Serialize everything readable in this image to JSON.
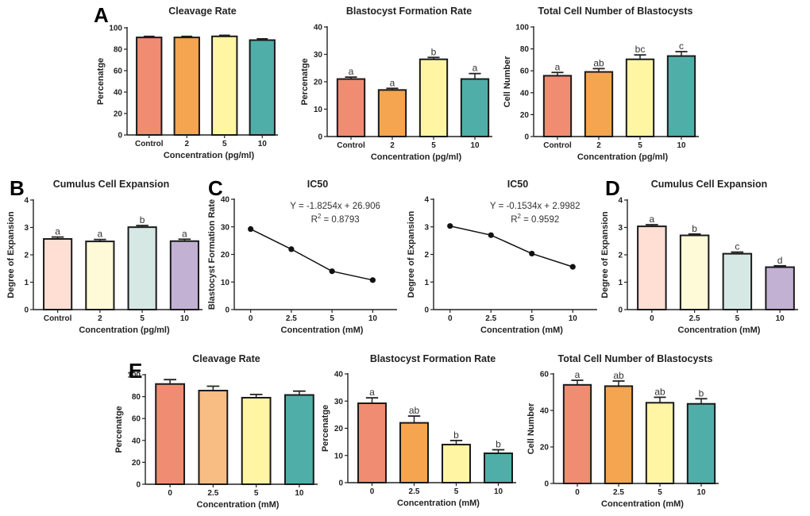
{
  "figure": {
    "panel_letters": [
      "A",
      "B",
      "C",
      "D",
      "E"
    ]
  },
  "colors": {
    "warm": [
      "#f08c72",
      "#f5a550",
      "#fff5a3",
      "#50aea8"
    ],
    "pastel": [
      "#ffdfd4",
      "#fefad8",
      "#d5e8e4",
      "#c3b1d4"
    ],
    "E_cleavage": [
      "#f08c72",
      "#f8bd82",
      "#fff5a3",
      "#50aea8"
    ]
  },
  "chart_data": [
    {
      "id": "A1",
      "panel": "A",
      "type": "bar",
      "title": "Cleavage Rate",
      "xlabel": "Concentration (pg/ml)",
      "ylabel": "Percenatge",
      "categories": [
        "Control",
        "2",
        "5",
        "10"
      ],
      "values": [
        91,
        91,
        92,
        88.5
      ],
      "errors": [
        1,
        1,
        1,
        1.2
      ],
      "sig_letters": [
        "",
        "",
        "",
        ""
      ],
      "ylim": [
        0,
        100
      ],
      "yticks": [
        0,
        20,
        40,
        60,
        80,
        100
      ],
      "palette": "warm"
    },
    {
      "id": "A2",
      "panel": "A",
      "type": "bar",
      "title": "Blastocyst Formation Rate",
      "xlabel": "Concentration (pg/ml)",
      "ylabel": "Percenatge",
      "categories": [
        "Control",
        "2",
        "5",
        "10"
      ],
      "values": [
        21,
        17,
        28.2,
        21
      ],
      "errors": [
        0.7,
        0.6,
        0.7,
        2
      ],
      "sig_letters": [
        "a",
        "a",
        "b",
        "a"
      ],
      "ylim": [
        0,
        40
      ],
      "yticks": [
        0,
        10,
        20,
        30,
        40
      ],
      "palette": "warm"
    },
    {
      "id": "A3",
      "panel": "A",
      "type": "bar",
      "title": "Total Cell Number of Blastocysts",
      "xlabel": "Concentration (pg/ml)",
      "ylabel": "Cell Number",
      "categories": [
        "Control",
        "2",
        "5",
        "10"
      ],
      "values": [
        55.5,
        59,
        70.5,
        73.5
      ],
      "errors": [
        3,
        3,
        4,
        4
      ],
      "sig_letters": [
        "a",
        "ab",
        "bc",
        "c"
      ],
      "ylim": [
        0,
        100
      ],
      "yticks": [
        0,
        20,
        40,
        60,
        80,
        100
      ],
      "palette": "warm"
    },
    {
      "id": "B",
      "panel": "B",
      "type": "bar",
      "title": "Cumulus Cell Expansion",
      "xlabel": "Concentration (pg/ml)",
      "ylabel": "Degree of Expansion",
      "categories": [
        "Control",
        "2",
        "5",
        "10"
      ],
      "values": [
        2.58,
        2.49,
        3.01,
        2.5
      ],
      "errors": [
        0.07,
        0.07,
        0.06,
        0.07
      ],
      "sig_letters": [
        "a",
        "a",
        "b",
        "a"
      ],
      "ylim": [
        0,
        4
      ],
      "yticks": [
        0,
        1,
        2,
        3,
        4
      ],
      "palette": "pastel"
    },
    {
      "id": "C1",
      "panel": "C",
      "type": "line",
      "title": "IC50",
      "xlabel": "Concentration (mM)",
      "ylabel": "Blastocyst Formation Rate",
      "categories": [
        "0",
        "2.5",
        "5",
        "10"
      ],
      "values": [
        29.2,
        21.9,
        13.9,
        10.7
      ],
      "ylim": [
        0,
        40
      ],
      "yticks": [
        0,
        10,
        20,
        30,
        40
      ],
      "equation": "Y = -1.8254x + 26.906",
      "r2_label": "R",
      "r2_sup": "2",
      "r2_value": " = 0.8793"
    },
    {
      "id": "C2",
      "panel": "",
      "type": "line",
      "title": "IC50",
      "xlabel": "Concentration (mM)",
      "ylabel": "Degree of Expansion",
      "categories": [
        "0",
        "2.5",
        "5",
        "10"
      ],
      "values": [
        3.03,
        2.7,
        2.03,
        1.55
      ],
      "ylim": [
        0,
        4
      ],
      "yticks": [
        0,
        1,
        2,
        3,
        4
      ],
      "equation": "Y = -0.1534x + 2.9982",
      "r2_label": "R",
      "r2_sup": "2",
      "r2_value": " = 0.9592"
    },
    {
      "id": "D",
      "panel": "D",
      "type": "bar",
      "title": "Cumulus Cell Expansion",
      "xlabel": "Concentration (mM)",
      "ylabel": "Degree of Expansion",
      "categories": [
        "0",
        "2.5",
        "5",
        "10"
      ],
      "values": [
        3.04,
        2.71,
        2.04,
        1.55
      ],
      "errors": [
        0.06,
        0.05,
        0.06,
        0.05
      ],
      "sig_letters": [
        "a",
        "b",
        "c",
        "d"
      ],
      "ylim": [
        0,
        4
      ],
      "yticks": [
        0,
        1,
        2,
        3,
        4
      ],
      "palette": "pastel"
    },
    {
      "id": "E1",
      "panel": "E",
      "type": "bar",
      "title": "Cleavage Rate",
      "xlabel": "Concentration (mM)",
      "ylabel": "Percenatge",
      "categories": [
        "0",
        "2.5",
        "5",
        "10"
      ],
      "values": [
        91.5,
        85.5,
        79,
        81.5
      ],
      "errors": [
        4,
        4,
        3,
        3.5
      ],
      "sig_letters": [
        "",
        "",
        "",
        ""
      ],
      "ylim": [
        0,
        100
      ],
      "yticks": [
        0,
        20,
        40,
        60,
        80,
        100
      ],
      "palette": "E_cleavage"
    },
    {
      "id": "E2",
      "panel": "",
      "type": "bar",
      "title": "Blastocyst Formation Rate",
      "xlabel": "Concentration (mM)",
      "ylabel": "Percenatge",
      "categories": [
        "0",
        "2.5",
        "5",
        "10"
      ],
      "values": [
        29.2,
        22,
        14,
        10.8
      ],
      "errors": [
        2,
        2.5,
        1.5,
        1.3
      ],
      "sig_letters": [
        "a",
        "ab",
        "b",
        "b"
      ],
      "ylim": [
        0,
        40
      ],
      "yticks": [
        0,
        10,
        20,
        30,
        40
      ],
      "palette": "warm"
    },
    {
      "id": "E3",
      "panel": "",
      "type": "bar",
      "title": "Total Cell Number of Blastocysts",
      "xlabel": "Concentration (mM)",
      "ylabel": "Cell Number",
      "categories": [
        "0",
        "2.5",
        "5",
        "10"
      ],
      "values": [
        54,
        53.3,
        44.2,
        43.6
      ],
      "errors": [
        2.5,
        2.8,
        3,
        2.8
      ],
      "sig_letters": [
        "a",
        "ab",
        "ab",
        "b"
      ],
      "ylim": [
        0,
        60
      ],
      "yticks": [
        0,
        20,
        40,
        60
      ],
      "palette": "warm"
    }
  ]
}
